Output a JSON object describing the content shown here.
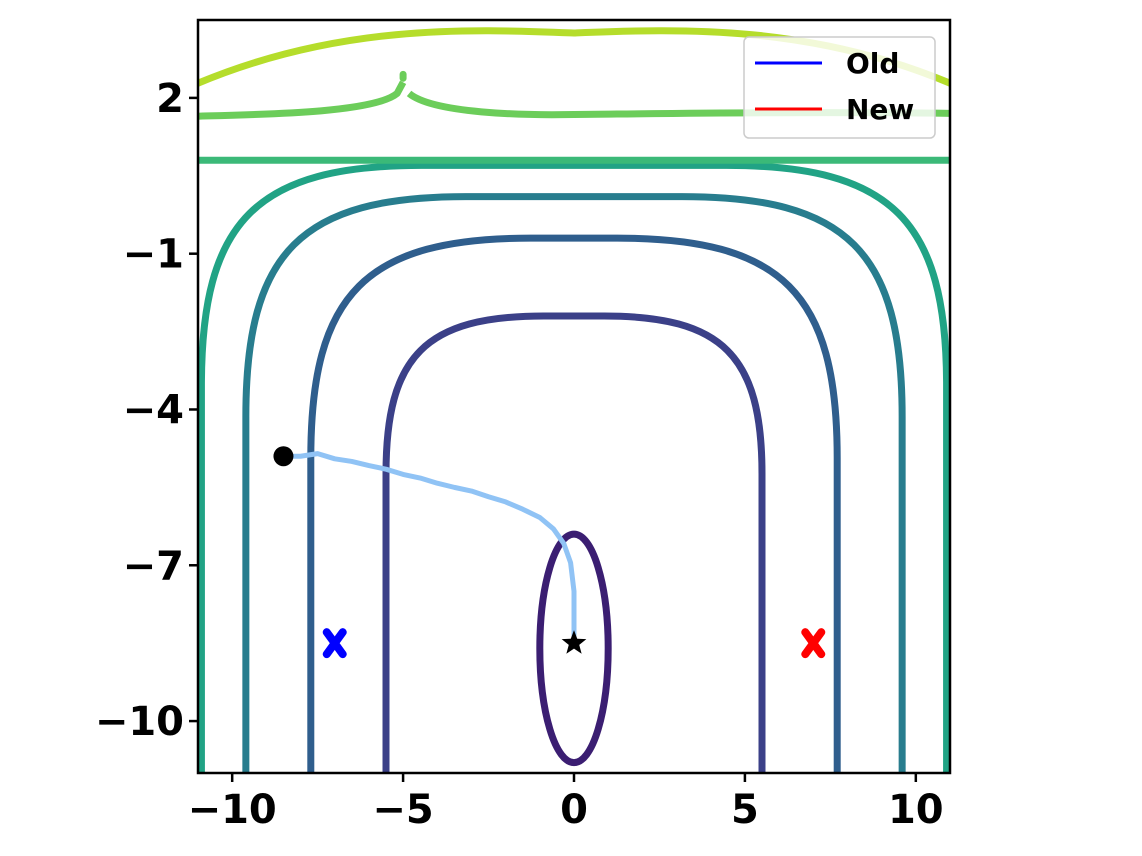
{
  "chart_data": {
    "type": "line",
    "title": "",
    "xlabel": "",
    "ylabel": "",
    "xlim": [
      -11,
      11
    ],
    "ylim": [
      -11,
      3.5
    ],
    "x_ticks": [
      -10,
      -5,
      0,
      5,
      10
    ],
    "y_ticks": [
      2,
      -1,
      -4,
      -7,
      -10
    ],
    "x_tick_labels": [
      "−10",
      "−5",
      "0",
      "5",
      "10"
    ],
    "y_tick_labels": [
      "2",
      "−1",
      "−4",
      "−7",
      "−10"
    ],
    "grid": false,
    "legend": {
      "location": "upper right",
      "entries": [
        {
          "label": "Old",
          "color": "#0000ff"
        },
        {
          "label": "New",
          "color": "#ff0000"
        }
      ]
    },
    "contours": [
      {
        "kind": "closed",
        "color": "#3b1e72",
        "x_min": -1,
        "x_max": 1,
        "y_top": -6.4,
        "y_bottom": -10.8
      },
      {
        "kind": "open",
        "color": "#3b4088",
        "x_left": -5.5,
        "x_right": 5.5,
        "y_top": -2.2
      },
      {
        "kind": "open",
        "color": "#2f5e8d",
        "x_left": -7.7,
        "x_right": 7.7,
        "y_top": -0.7
      },
      {
        "kind": "open",
        "color": "#287d8e",
        "x_left": -9.6,
        "x_right": 9.6,
        "y_top": 0.1
      },
      {
        "kind": "open",
        "color": "#21a385",
        "x_left": -10.9,
        "x_right": 10.9,
        "y_top": 0.7
      },
      {
        "kind": "horizontal",
        "color": "#3bb978",
        "y": 0.8
      },
      {
        "kind": "horizontal",
        "color": "#6ccd5a",
        "y": 1.7,
        "spike_x": -5,
        "spike_top": 2.3
      },
      {
        "kind": "arc",
        "color": "#b5dd2b",
        "y_edge": 2.2,
        "y_peak": 3.25
      }
    ],
    "trajectory": {
      "color": "#90c3f5",
      "points": [
        [
          -8.5,
          -4.9
        ],
        [
          -8.0,
          -4.9
        ],
        [
          -7.5,
          -4.85
        ],
        [
          -7.0,
          -4.95
        ],
        [
          -6.5,
          -5.0
        ],
        [
          -6.0,
          -5.08
        ],
        [
          -5.5,
          -5.15
        ],
        [
          -5.0,
          -5.25
        ],
        [
          -4.5,
          -5.32
        ],
        [
          -4.0,
          -5.42
        ],
        [
          -3.5,
          -5.5
        ],
        [
          -3.0,
          -5.57
        ],
        [
          -2.5,
          -5.68
        ],
        [
          -2.0,
          -5.78
        ],
        [
          -1.5,
          -5.92
        ],
        [
          -1.0,
          -6.08
        ],
        [
          -0.6,
          -6.3
        ],
        [
          -0.3,
          -6.58
        ],
        [
          -0.1,
          -6.95
        ],
        [
          0.0,
          -7.5
        ],
        [
          0.0,
          -8.0
        ],
        [
          0.0,
          -8.4
        ]
      ]
    },
    "markers": [
      {
        "name": "start-point",
        "shape": "circle",
        "x": -8.5,
        "y": -4.9,
        "color": "#000000"
      },
      {
        "name": "optimum-star",
        "shape": "star",
        "x": 0,
        "y": -8.5,
        "color": "#000000"
      },
      {
        "name": "old-marker",
        "shape": "x",
        "x": -7,
        "y": -8.5,
        "color": "#0000ff"
      },
      {
        "name": "new-marker",
        "shape": "x",
        "x": 7,
        "y": -8.5,
        "color": "#ff0000"
      }
    ]
  }
}
